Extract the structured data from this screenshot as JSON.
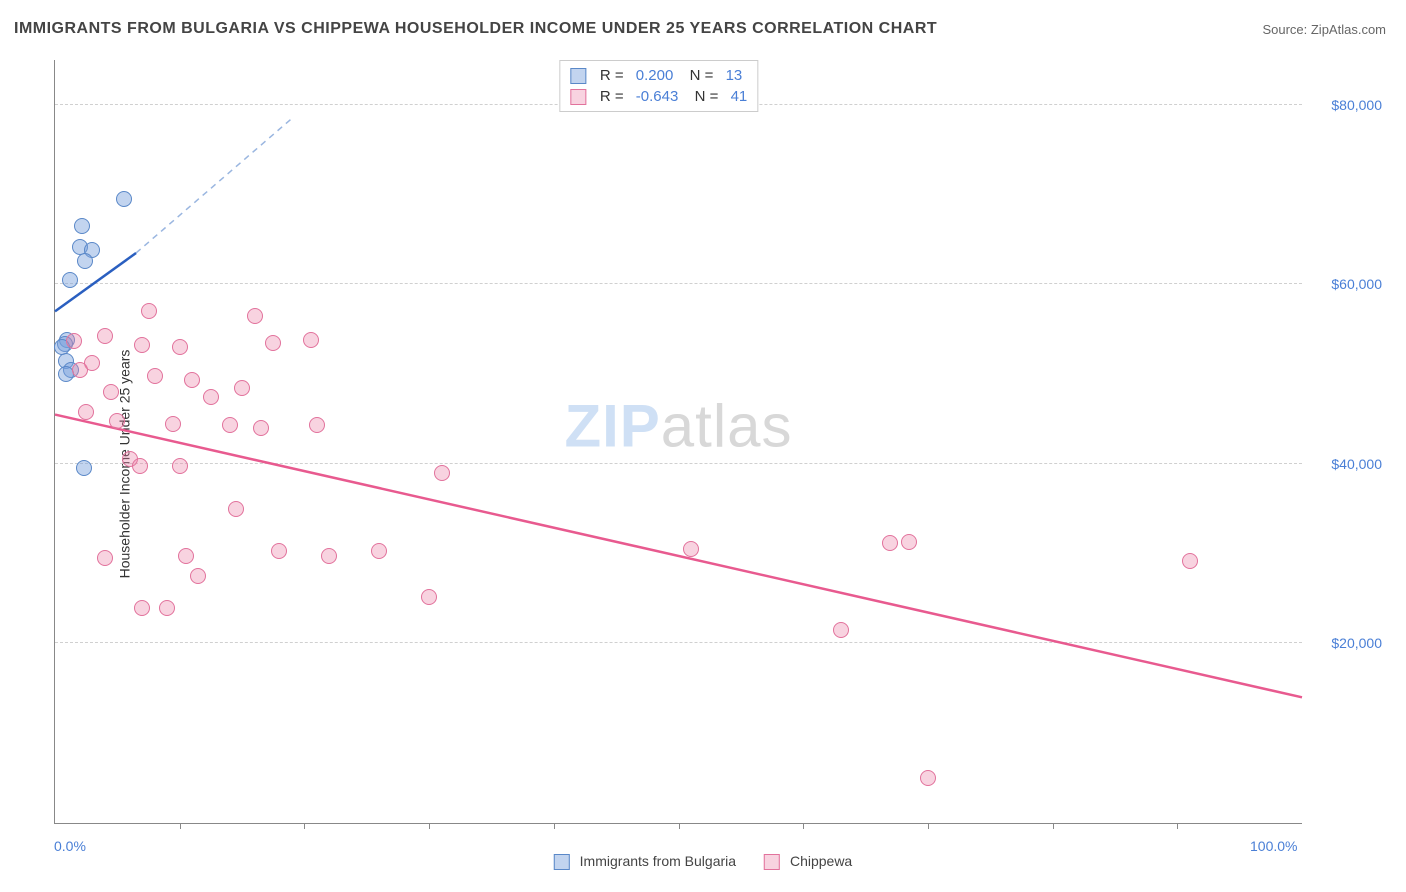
{
  "title": "IMMIGRANTS FROM BULGARIA VS CHIPPEWA HOUSEHOLDER INCOME UNDER 25 YEARS CORRELATION CHART",
  "source_label": "Source: ZipAtlas.com",
  "ylabel": "Householder Income Under 25 years",
  "watermark": {
    "part1": "ZIP",
    "part2": "atlas"
  },
  "chart": {
    "type": "scatter-correlation",
    "xlim": [
      0,
      100
    ],
    "ylim": [
      0,
      85000
    ],
    "x_min_label": "0.0%",
    "x_max_label": "100.0%",
    "y_grid": [
      20000,
      40000,
      60000,
      80000
    ],
    "y_grid_labels": [
      "$20,000",
      "$40,000",
      "$60,000",
      "$80,000"
    ],
    "x_tick_step": 10,
    "background_color": "#ffffff",
    "grid_color": "#d0d0d0",
    "axis_color": "#888888",
    "tick_label_color": "#4a7fd6",
    "point_radius": 8,
    "point_stroke_width": 1,
    "series": [
      {
        "id": "bulgaria",
        "label": "Immigrants from Bulgaria",
        "fill": "rgba(120,160,220,0.45)",
        "stroke": "#5a88c8",
        "trend_stroke": "#2a5fc0",
        "trend_width": 2.5,
        "trend_dash_extension_color": "#9ab6e0",
        "R": "0.200",
        "N": "13",
        "points": [
          {
            "x": 5.5,
            "y": 69500
          },
          {
            "x": 2.2,
            "y": 66500
          },
          {
            "x": 2.0,
            "y": 64200
          },
          {
            "x": 3.0,
            "y": 63800
          },
          {
            "x": 2.4,
            "y": 62600
          },
          {
            "x": 1.2,
            "y": 60500
          },
          {
            "x": 1.0,
            "y": 53800
          },
          {
            "x": 0.8,
            "y": 53400
          },
          {
            "x": 0.6,
            "y": 53000
          },
          {
            "x": 0.9,
            "y": 51500
          },
          {
            "x": 1.3,
            "y": 50500
          },
          {
            "x": 0.9,
            "y": 50000
          },
          {
            "x": 2.3,
            "y": 39500
          }
        ],
        "trend": {
          "x1": 0,
          "y1": 57000,
          "x2": 6.5,
          "y2": 63500
        },
        "trend_dash": {
          "x1": 6.5,
          "y1": 63500,
          "x2": 19,
          "y2": 78500
        }
      },
      {
        "id": "chippewa",
        "label": "Chippewa",
        "fill": "rgba(235,130,165,0.35)",
        "stroke": "#e2729c",
        "trend_stroke": "#e85a8f",
        "trend_width": 2.5,
        "R": "-0.643",
        "N": "41",
        "points": [
          {
            "x": 7.5,
            "y": 57000
          },
          {
            "x": 4.0,
            "y": 54200
          },
          {
            "x": 1.5,
            "y": 53700
          },
          {
            "x": 7.0,
            "y": 53200
          },
          {
            "x": 10.0,
            "y": 53000
          },
          {
            "x": 16.0,
            "y": 56500
          },
          {
            "x": 17.5,
            "y": 53500
          },
          {
            "x": 20.5,
            "y": 53800
          },
          {
            "x": 3.0,
            "y": 51300
          },
          {
            "x": 2.0,
            "y": 50500
          },
          {
            "x": 8.0,
            "y": 49800
          },
          {
            "x": 11.0,
            "y": 49300
          },
          {
            "x": 4.5,
            "y": 48000
          },
          {
            "x": 12.5,
            "y": 47500
          },
          {
            "x": 15.0,
            "y": 48500
          },
          {
            "x": 2.5,
            "y": 45800
          },
          {
            "x": 5.0,
            "y": 44800
          },
          {
            "x": 9.5,
            "y": 44500
          },
          {
            "x": 14.0,
            "y": 44300
          },
          {
            "x": 16.5,
            "y": 44000
          },
          {
            "x": 21.0,
            "y": 44300
          },
          {
            "x": 6.0,
            "y": 40500
          },
          {
            "x": 6.8,
            "y": 39800
          },
          {
            "x": 10.0,
            "y": 39800
          },
          {
            "x": 31.0,
            "y": 39000
          },
          {
            "x": 14.5,
            "y": 35000
          },
          {
            "x": 4.0,
            "y": 29500
          },
          {
            "x": 10.5,
            "y": 29800
          },
          {
            "x": 18.0,
            "y": 30300
          },
          {
            "x": 22.0,
            "y": 29800
          },
          {
            "x": 26.0,
            "y": 30300
          },
          {
            "x": 51.0,
            "y": 30500
          },
          {
            "x": 67.0,
            "y": 31200
          },
          {
            "x": 68.5,
            "y": 31300
          },
          {
            "x": 91.0,
            "y": 29200
          },
          {
            "x": 11.5,
            "y": 27500
          },
          {
            "x": 30.0,
            "y": 25200
          },
          {
            "x": 7.0,
            "y": 24000
          },
          {
            "x": 9.0,
            "y": 24000
          },
          {
            "x": 63.0,
            "y": 21500
          },
          {
            "x": 70.0,
            "y": 5000
          }
        ],
        "trend": {
          "x1": 0,
          "y1": 45500,
          "x2": 100,
          "y2": 14000
        }
      }
    ]
  }
}
